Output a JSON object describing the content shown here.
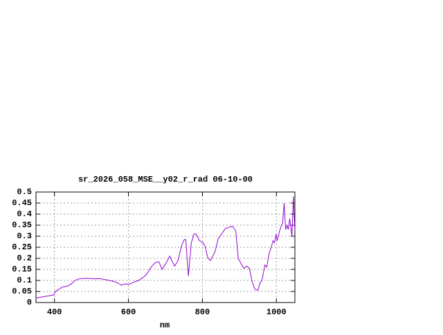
{
  "chart_data": {
    "type": "line",
    "title": "sr_2026_058_MSE__y02_r_rad 06-10-00",
    "x_label": "nm",
    "x": [
      350,
      365,
      384,
      399,
      402,
      412,
      421,
      436,
      446,
      455,
      468,
      487,
      506,
      524,
      543,
      562,
      575,
      582,
      590,
      601,
      612,
      627,
      641,
      650,
      661,
      672,
      682,
      691,
      702,
      712,
      717,
      725,
      734,
      744,
      751,
      755,
      762,
      770,
      777,
      783,
      792,
      802,
      807,
      815,
      822,
      834,
      843,
      852,
      856,
      862,
      871,
      881,
      890,
      897,
      905,
      912,
      920,
      927,
      935,
      942,
      950,
      956,
      961,
      969,
      974,
      980,
      986,
      991,
      995,
      999,
      1002,
      1008,
      1014,
      1017,
      1021,
      1025,
      1029,
      1032,
      1036,
      1042,
      1046,
      1049,
      1050
    ],
    "values": [
      0.02,
      0.025,
      0.03,
      0.035,
      0.05,
      0.06,
      0.07,
      0.075,
      0.085,
      0.1,
      0.108,
      0.11,
      0.108,
      0.108,
      0.102,
      0.095,
      0.085,
      0.078,
      0.085,
      0.082,
      0.09,
      0.1,
      0.115,
      0.13,
      0.16,
      0.18,
      0.185,
      0.15,
      0.18,
      0.21,
      0.19,
      0.165,
      0.19,
      0.26,
      0.285,
      0.285,
      0.12,
      0.27,
      0.31,
      0.31,
      0.28,
      0.27,
      0.255,
      0.2,
      0.19,
      0.23,
      0.29,
      0.31,
      0.32,
      0.335,
      0.34,
      0.345,
      0.325,
      0.2,
      0.175,
      0.155,
      0.165,
      0.155,
      0.09,
      0.06,
      0.055,
      0.09,
      0.1,
      0.17,
      0.16,
      0.22,
      0.25,
      0.28,
      0.27,
      0.31,
      0.28,
      0.32,
      0.35,
      0.36,
      0.45,
      0.33,
      0.35,
      0.33,
      0.38,
      0.3,
      0.48,
      0.35,
      0.33
    ],
    "color": "#9400d3",
    "xlim": [
      350,
      1050
    ],
    "xticks": [
      400,
      600,
      800,
      1000
    ],
    "ylim": [
      0,
      0.5
    ],
    "yticks": [
      0,
      0.05,
      0.1,
      0.15,
      0.2,
      0.25,
      0.3,
      0.35,
      0.4,
      0.45,
      0.5
    ],
    "grid": true
  }
}
